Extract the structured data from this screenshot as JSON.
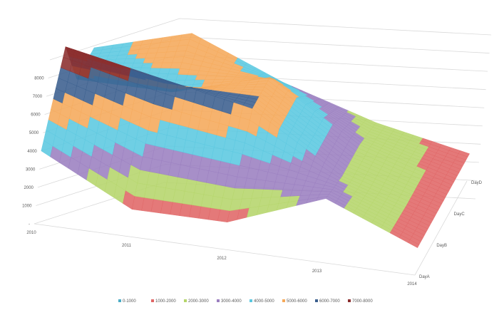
{
  "chart_data": {
    "type": "surface",
    "z_ticks": [
      "-",
      "1000",
      "2000",
      "3000",
      "4000",
      "5000",
      "6000",
      "7000",
      "8000"
    ],
    "x_categories": [
      "2010",
      "2011",
      "2012",
      "2013",
      "2014"
    ],
    "y_categories": [
      "DayA",
      "DayB",
      "DayC",
      "DayD"
    ],
    "zlim": [
      0,
      9000
    ],
    "grid": true,
    "legend_position": "bottom",
    "bands": [
      {
        "name": "0-1000",
        "color": "#4BACC6"
      },
      {
        "name": "1000-2000",
        "color": "#E06666"
      },
      {
        "name": "2000-3000",
        "color": "#B5D56B"
      },
      {
        "name": "3000-4000",
        "color": "#9B7FC0"
      },
      {
        "name": "4000-5000",
        "color": "#5BC8E0"
      },
      {
        "name": "5000-6000",
        "color": "#F5A95A"
      },
      {
        "name": "6000-7000",
        "color": "#3B5F8E"
      },
      {
        "name": "7000-8000",
        "color": "#8B2E2E"
      }
    ],
    "values": [
      [
        4000,
        8000,
        4500,
        4500
      ],
      [
        1500,
        7000,
        4500,
        6000
      ],
      [
        1500,
        6000,
        6000,
        4000
      ],
      [
        3500,
        3000,
        3000,
        2500
      ],
      [
        1500,
        1500,
        1500,
        1500
      ]
    ]
  }
}
